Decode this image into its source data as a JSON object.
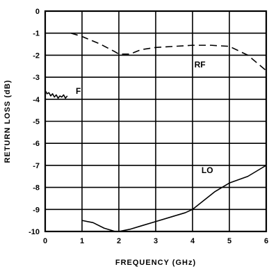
{
  "chart_data": {
    "type": "line",
    "title": "",
    "xlabel": "FREQUENCY (GHz)",
    "ylabel": "RETURN LOSS (dB)",
    "xlim": [
      0,
      6
    ],
    "ylim": [
      -10,
      0
    ],
    "x_ticks": [
      "0",
      "1",
      "2",
      "3",
      "4",
      "5",
      "6"
    ],
    "y_ticks": [
      "0",
      "-1",
      "-2",
      "-3",
      "-4",
      "-5",
      "-6",
      "-7",
      "-8",
      "-9",
      "-10"
    ],
    "grid": true,
    "series": [
      {
        "name": "RF",
        "style": "dashed",
        "x": [
          0.7,
          1.0,
          1.5,
          1.9,
          2.0,
          2.3,
          2.6,
          3.0,
          3.5,
          4.0,
          4.5,
          5.0,
          5.5,
          6.0
        ],
        "y": [
          -1.0,
          -1.15,
          -1.5,
          -1.85,
          -1.95,
          -1.95,
          -1.75,
          -1.65,
          -1.6,
          -1.55,
          -1.55,
          -1.6,
          -2.0,
          -2.7
        ]
      },
      {
        "name": "IF",
        "label_text": "F",
        "style": "solid",
        "x": [
          0.0,
          0.05,
          0.1,
          0.15,
          0.2,
          0.25,
          0.3,
          0.35,
          0.4,
          0.45,
          0.5,
          0.55,
          0.6
        ],
        "y": [
          -3.6,
          -3.75,
          -3.7,
          -3.85,
          -3.75,
          -3.9,
          -3.8,
          -3.95,
          -3.85,
          -3.9,
          -3.8,
          -3.95,
          -3.85
        ]
      },
      {
        "name": "LO",
        "style": "solid",
        "x": [
          1.0,
          1.3,
          1.6,
          1.9,
          2.0,
          2.3,
          2.6,
          3.0,
          3.5,
          3.8,
          4.0,
          4.3,
          4.6,
          5.0,
          5.5,
          6.0
        ],
        "y": [
          -9.5,
          -9.6,
          -9.85,
          -10.0,
          -10.0,
          -9.9,
          -9.75,
          -9.55,
          -9.3,
          -9.15,
          -9.0,
          -8.6,
          -8.2,
          -7.8,
          -7.5,
          -7.0
        ]
      }
    ]
  }
}
